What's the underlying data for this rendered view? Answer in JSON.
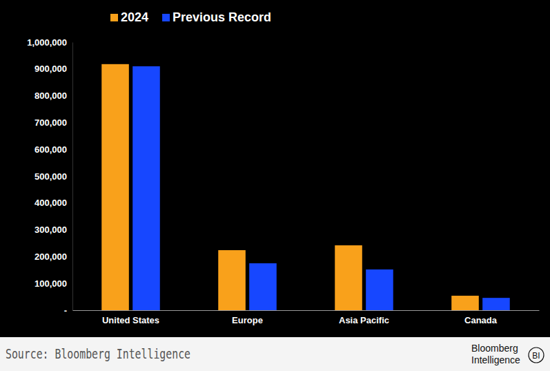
{
  "chart_data": {
    "type": "bar",
    "categories": [
      "United States",
      "Europe",
      "Asia Pacific",
      "Canada"
    ],
    "series": [
      {
        "name": "2024",
        "color": "#f9a11b",
        "values": [
          918000,
          224000,
          242000,
          54000
        ]
      },
      {
        "name": "Previous Record",
        "color": "#1747ff",
        "values": [
          910000,
          175000,
          152000,
          46000
        ]
      }
    ],
    "ylim": [
      0,
      1000000
    ],
    "yticks": [
      {
        "value": 0,
        "label": "-"
      },
      {
        "value": 100000,
        "label": "100,000"
      },
      {
        "value": 200000,
        "label": "200,000"
      },
      {
        "value": 300000,
        "label": "300,000"
      },
      {
        "value": 400000,
        "label": "400,000"
      },
      {
        "value": 500000,
        "label": "500,000"
      },
      {
        "value": 600000,
        "label": "600,000"
      },
      {
        "value": 700000,
        "label": "700,000"
      },
      {
        "value": 800000,
        "label": "800,000"
      },
      {
        "value": 900000,
        "label": "900,000"
      },
      {
        "value": 1000000,
        "label": "1,000,000"
      }
    ],
    "grid": false,
    "legend": "top",
    "source": "Source: Bloomberg Intelligence",
    "annotations": [
      "Bloomberg",
      "Intelligence",
      "BI"
    ]
  }
}
